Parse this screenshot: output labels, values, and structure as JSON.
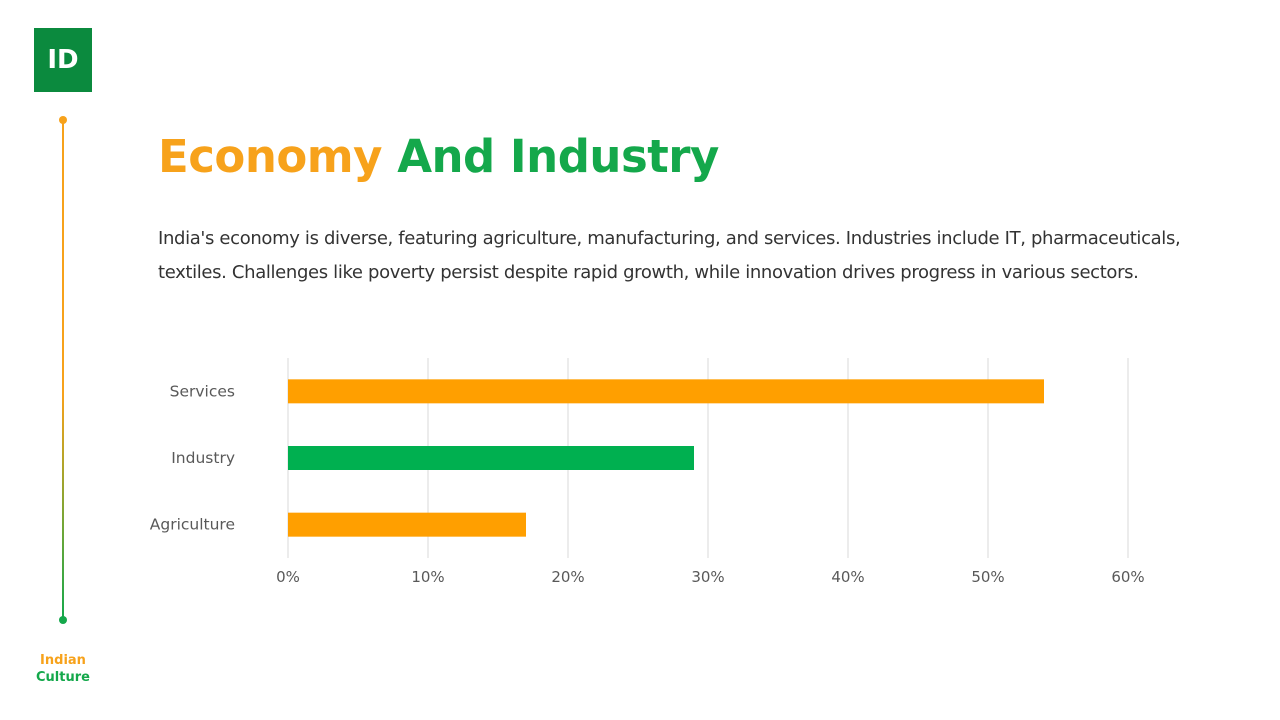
{
  "brand": {
    "logo_text": "ID",
    "footer_line1": "Indian",
    "footer_line2": "Culture",
    "accent_orange": "#f7a21b",
    "accent_green": "#14a84b",
    "logo_bg": "#0b8a3e"
  },
  "slide": {
    "title_part1": "Economy",
    "title_part2": "And Industry",
    "description": "India's economy is diverse, featuring agriculture, manufacturing, and services. Industries include IT, pharmaceuticals, textiles. Challenges like poverty persist despite rapid growth, while innovation drives progress in various sectors."
  },
  "chart_data": {
    "type": "bar",
    "orientation": "horizontal",
    "categories": [
      "Services",
      "Industry",
      "Agriculture"
    ],
    "values": [
      54,
      29,
      17
    ],
    "bar_colors": [
      "#ff9f00",
      "#00b050",
      "#ff9f00"
    ],
    "xlim": [
      0,
      60
    ],
    "x_ticks": [
      "0%",
      "10%",
      "20%",
      "30%",
      "40%",
      "50%",
      "60%"
    ],
    "grid": "vertical",
    "legend": "none"
  }
}
